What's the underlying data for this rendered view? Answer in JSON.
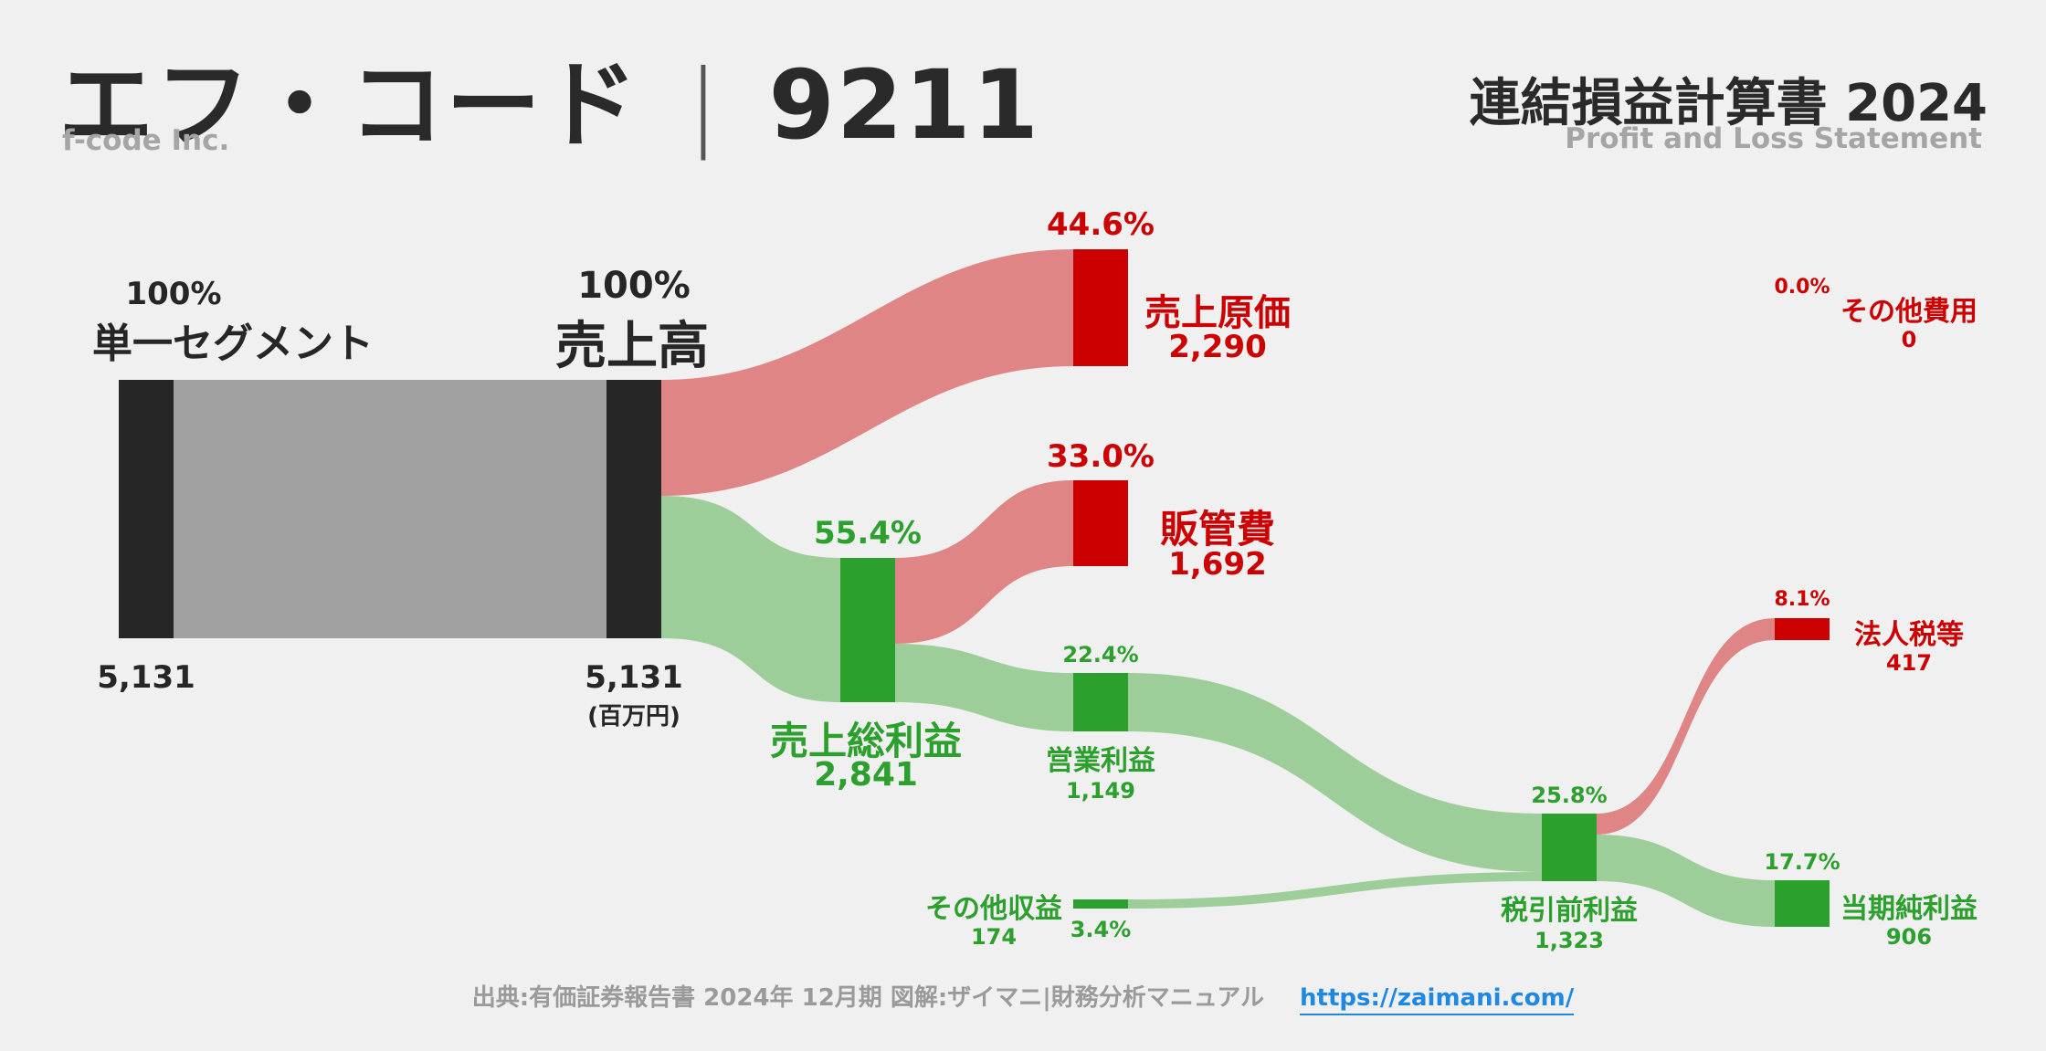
{
  "header": {
    "company_name": "エフ・コード",
    "separator": "|",
    "ticker": "9211",
    "company_en": "f-code Inc.",
    "statement_title": "連結損益計算書 2024",
    "statement_en": "Profit and Loss Statement"
  },
  "nodes": {
    "segment": {
      "pct": "100%",
      "label": "単一セグメント",
      "value": "5,131"
    },
    "revenue": {
      "pct": "100%",
      "label": "売上高",
      "value": "5,131",
      "unit": "(百万円)"
    },
    "cogs": {
      "pct": "44.6%",
      "label": "売上原価",
      "value": "2,290"
    },
    "gross_profit": {
      "pct": "55.4%",
      "label": "売上総利益",
      "value": "2,841"
    },
    "sga": {
      "pct": "33.0%",
      "label": "販管費",
      "value": "1,692"
    },
    "operating_profit": {
      "pct": "22.4%",
      "label": "営業利益",
      "value": "1,149"
    },
    "other_income": {
      "pct": "3.4%",
      "label": "その他収益",
      "value": "174"
    },
    "pretax_profit": {
      "pct": "25.8%",
      "label": "税引前利益",
      "value": "1,323"
    },
    "other_expense": {
      "pct": "0.0%",
      "label": "その他費用",
      "value": "0"
    },
    "income_tax": {
      "pct": "8.1%",
      "label": "法人税等",
      "value": "417"
    },
    "net_income": {
      "pct": "17.7%",
      "label": "当期純利益",
      "value": "906"
    }
  },
  "colors": {
    "node_dark": "#262626",
    "flow_gray": "#a0a0a0",
    "node_red": "#cc0000",
    "flow_red": "#e08585",
    "node_green": "#2ca02c",
    "flow_green": "#9dce9a"
  },
  "footer": {
    "source": "出典:有価証券報告書 2024年 12月期 図解:ザイマニ|財務分析マニュアル",
    "url": "https://zaimani.com/"
  }
}
